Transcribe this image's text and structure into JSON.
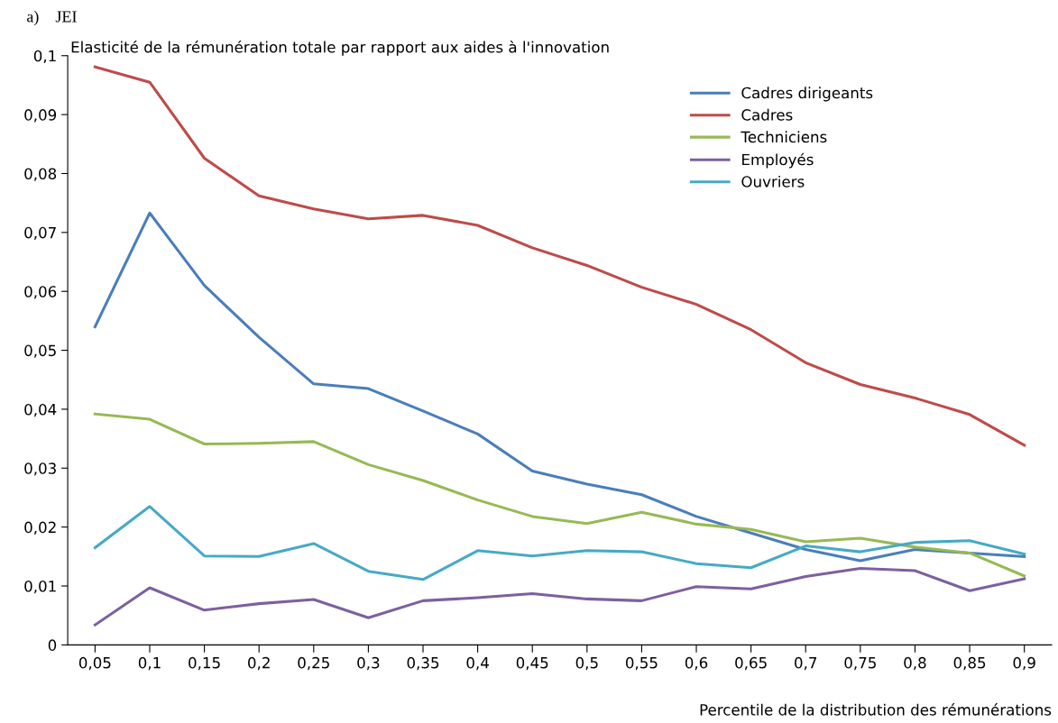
{
  "chart_data": {
    "type": "line",
    "title": "Elasticité de la rémunération totale par rapport aux aides à l'innovation",
    "xlabel": "Percentile de la distribution des rémunérations",
    "annotations": [
      "a)    JEI"
    ],
    "categories": [
      "0,05",
      "0,1",
      "0,15",
      "0,2",
      "0,25",
      "0,3",
      "0,35",
      "0,4",
      "0,45",
      "0,5",
      "0,55",
      "0,6",
      "0,65",
      "0,7",
      "0,75",
      "0,8",
      "0,85",
      "0,9"
    ],
    "series": [
      {
        "name": "Cadres dirigeants",
        "color": "#4a7ebb",
        "values": [
          0.054,
          0.0733,
          0.061,
          0.0522,
          0.0443,
          0.0435,
          0.0397,
          0.0358,
          0.0295,
          0.0273,
          0.0255,
          0.0218,
          0.019,
          0.0162,
          0.0143,
          0.0162,
          0.0156,
          0.015
        ]
      },
      {
        "name": "Cadres",
        "color": "#be4b48",
        "values": [
          0.0981,
          0.0955,
          0.0826,
          0.0762,
          0.074,
          0.0723,
          0.0729,
          0.0712,
          0.0674,
          0.0644,
          0.0607,
          0.0578,
          0.0535,
          0.0479,
          0.0442,
          0.0419,
          0.0391,
          0.0339
        ]
      },
      {
        "name": "Techniciens",
        "color": "#98b954",
        "values": [
          0.0392,
          0.0383,
          0.0341,
          0.0342,
          0.0345,
          0.0306,
          0.0279,
          0.0246,
          0.0218,
          0.0206,
          0.0225,
          0.0205,
          0.0196,
          0.0175,
          0.0181,
          0.0166,
          0.0156,
          0.0117
        ]
      },
      {
        "name": "Employés",
        "color": "#7d60a0",
        "values": [
          0.0034,
          0.0097,
          0.0059,
          0.007,
          0.0077,
          0.0046,
          0.0075,
          0.008,
          0.0087,
          0.0078,
          0.0075,
          0.0099,
          0.0095,
          0.0116,
          0.013,
          0.0126,
          0.0092,
          0.0112
        ]
      },
      {
        "name": "Ouvriers",
        "color": "#46aac5",
        "values": [
          0.0165,
          0.0235,
          0.0151,
          0.015,
          0.0172,
          0.0125,
          0.0111,
          0.016,
          0.0151,
          0.016,
          0.0158,
          0.0138,
          0.0131,
          0.0168,
          0.0158,
          0.0174,
          0.0177,
          0.0154
        ]
      }
    ],
    "ylim": [
      0,
      0.1
    ],
    "yticks": [
      0,
      {
        "value": 0.01,
        "label": "0,01"
      },
      {
        "value": 0.02,
        "label": "0,02"
      },
      {
        "value": 0.03,
        "label": "0,03"
      },
      {
        "value": 0.04,
        "label": "0,04"
      },
      {
        "value": 0.05,
        "label": "0,05"
      },
      {
        "value": 0.06,
        "label": "0,06"
      },
      {
        "value": 0.07,
        "label": "0,07"
      },
      {
        "value": 0.08,
        "label": "0,08"
      },
      {
        "value": 0.09,
        "label": "0,09"
      },
      {
        "value": 0.1,
        "label": "0,1"
      }
    ],
    "legend": "top right",
    "grid": false,
    "marker": "none",
    "line_style": "solid"
  }
}
